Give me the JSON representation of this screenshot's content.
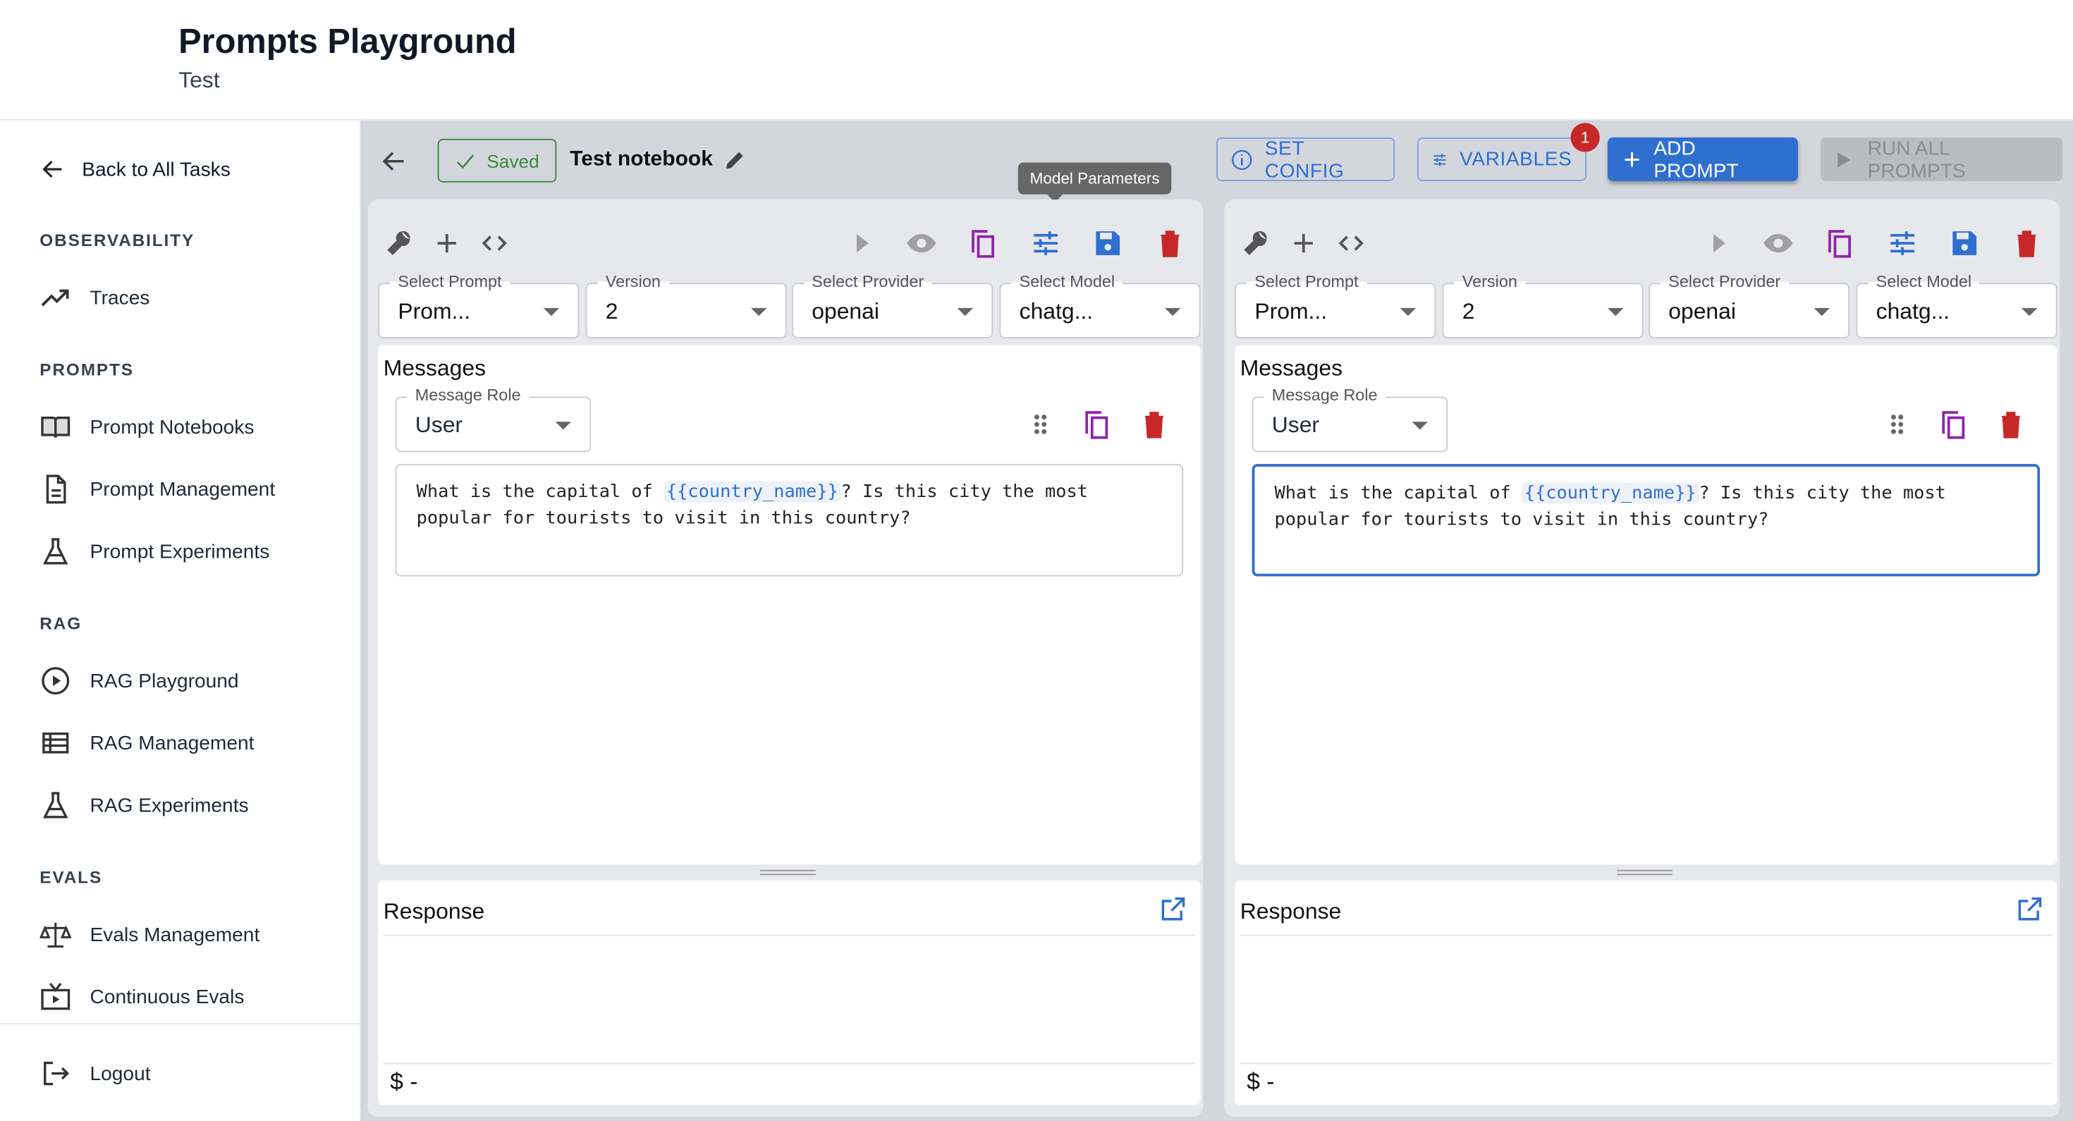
{
  "header": {
    "title": "Prompts Playground",
    "subtitle": "Test"
  },
  "sidebar": {
    "back": "Back to All Tasks",
    "sections": {
      "observability": {
        "title": "OBSERVABILITY",
        "items": [
          "Traces"
        ]
      },
      "prompts": {
        "title": "PROMPTS",
        "items": [
          "Prompt Notebooks",
          "Prompt Management",
          "Prompt Experiments"
        ]
      },
      "rag": {
        "title": "RAG",
        "items": [
          "RAG Playground",
          "RAG Management",
          "RAG Experiments"
        ]
      },
      "evals": {
        "title": "EVALS",
        "items": [
          "Evals Management",
          "Continuous Evals"
        ]
      }
    },
    "logout": "Logout"
  },
  "topbar": {
    "saved": "Saved",
    "notebook_name": "Test notebook",
    "set_config": "SET CONFIG",
    "variables": "VARIABLES",
    "variables_badge": "1",
    "add_prompt": "ADD PROMPT",
    "run_all": "RUN ALL PROMPTS",
    "tooltip": "Model Parameters"
  },
  "colors": {
    "primary": "#2f6fd0",
    "success": "#3c8a3a",
    "danger": "#c62828",
    "copy": "#8e24aa"
  },
  "panels": [
    {
      "select_prompt": {
        "label": "Select Prompt",
        "value": "Prom..."
      },
      "version": {
        "label": "Version",
        "value": "2"
      },
      "provider": {
        "label": "Select Provider",
        "value": "openai"
      },
      "model": {
        "label": "Select Model",
        "value": "chatg..."
      },
      "messages_title": "Messages",
      "role": {
        "label": "Message Role",
        "value": "User"
      },
      "message": {
        "before": "What is the capital of ",
        "variable": "{{country_name}}",
        "after": "? Is this city the most popular for tourists to visit in this country?"
      },
      "response_title": "Response",
      "cost": "$ -"
    },
    {
      "select_prompt": {
        "label": "Select Prompt",
        "value": "Prom..."
      },
      "version": {
        "label": "Version",
        "value": "2"
      },
      "provider": {
        "label": "Select Provider",
        "value": "openai"
      },
      "model": {
        "label": "Select Model",
        "value": "chatg..."
      },
      "messages_title": "Messages",
      "role": {
        "label": "Message Role",
        "value": "User"
      },
      "message": {
        "before": "What is the capital of ",
        "variable": "{{country_name}}",
        "after": "? Is this city the most popular for tourists to visit in this country?"
      },
      "response_title": "Response",
      "cost": "$ -"
    }
  ]
}
